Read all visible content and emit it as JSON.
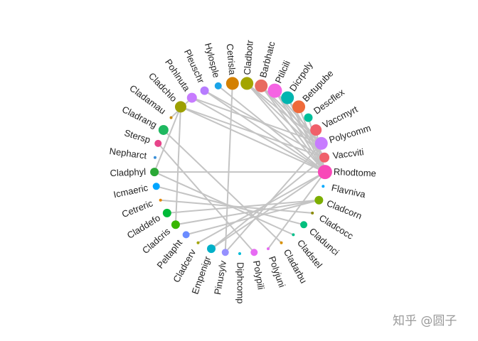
{
  "nodes": [
    {
      "label": "Cladbotr",
      "color": "#a3a500",
      "size": 9
    },
    {
      "label": "Barbhatc",
      "color": "#e86a5f",
      "size": 9
    },
    {
      "label": "Ptilcili",
      "color": "#f564e3",
      "size": 10
    },
    {
      "label": "Dicrpoly",
      "color": "#00b5b0",
      "size": 9
    },
    {
      "label": "Betupube",
      "color": "#ef6a3a",
      "size": 9
    },
    {
      "label": "Descflex",
      "color": "#00bf9a",
      "size": 6
    },
    {
      "label": "Vaccmyrt",
      "color": "#f0606a",
      "size": 8
    },
    {
      "label": "Polycomm",
      "color": "#c77cff",
      "size": 9
    },
    {
      "label": "Vaccviti",
      "color": "#f0606a",
      "size": 7
    },
    {
      "label": "Rhodtome",
      "color": "#f848b8",
      "size": 10
    },
    {
      "label": "Flavniva",
      "color": "#00a9ff",
      "size": 2
    },
    {
      "label": "Cladcorn",
      "color": "#7cae00",
      "size": 6
    },
    {
      "label": "Cladcocc",
      "color": "#8a8a00",
      "size": 2
    },
    {
      "label": "Cladunci",
      "color": "#00bf7d",
      "size": 5
    },
    {
      "label": "Cladstel",
      "color": "#00c08b",
      "size": 2
    },
    {
      "label": "Cladarbu",
      "color": "#d89000",
      "size": 2
    },
    {
      "label": "Polyjuni",
      "color": "#e76bf3",
      "size": 2
    },
    {
      "label": "Polypili",
      "color": "#e76bf3",
      "size": 5
    },
    {
      "label": "Diphcomp",
      "color": "#00bcd8",
      "size": 2
    },
    {
      "label": "Pinusylv",
      "color": "#9590ff",
      "size": 5
    },
    {
      "label": "Empenigr",
      "color": "#00b0c8",
      "size": 6
    },
    {
      "label": "Cladcerv",
      "color": "#a3a500",
      "size": 2
    },
    {
      "label": "Peltapht",
      "color": "#6b8cff",
      "size": 5
    },
    {
      "label": "Cladcris",
      "color": "#39b600",
      "size": 6
    },
    {
      "label": "Claddefo",
      "color": "#00ba38",
      "size": 6
    },
    {
      "label": "Cetreric",
      "color": "#e58700",
      "size": 2
    },
    {
      "label": "Icmaeric",
      "color": "#00a5ff",
      "size": 5
    },
    {
      "label": "Cladphyl",
      "color": "#2aa836",
      "size": 6
    },
    {
      "label": "Nepharct",
      "color": "#3a8fd8",
      "size": 2
    },
    {
      "label": "Stersp",
      "color": "#e7448a",
      "size": 5
    },
    {
      "label": "Cladrang",
      "color": "#1fb860",
      "size": 7
    },
    {
      "label": "Cladamau",
      "color": "#c88a00",
      "size": 2
    },
    {
      "label": "Cladchlo",
      "color": "#9da000",
      "size": 8
    },
    {
      "label": "Pohlnuta",
      "color": "#c77cff",
      "size": 7
    },
    {
      "label": "Pleuschr",
      "color": "#b77cff",
      "size": 6
    },
    {
      "label": "Hylosple",
      "color": "#1aa4e8",
      "size": 5
    },
    {
      "label": "Cetrisla",
      "color": "#d48000",
      "size": 9
    }
  ],
  "edges": [
    [
      36,
      19
    ],
    [
      32,
      23
    ],
    [
      32,
      27
    ],
    [
      32,
      9
    ],
    [
      32,
      8
    ],
    [
      33,
      9
    ],
    [
      33,
      7
    ],
    [
      34,
      9
    ],
    [
      34,
      8
    ],
    [
      35,
      9
    ],
    [
      0,
      9
    ],
    [
      0,
      8
    ],
    [
      1,
      9
    ],
    [
      1,
      8
    ],
    [
      2,
      9
    ],
    [
      2,
      7
    ],
    [
      3,
      9
    ],
    [
      3,
      8
    ],
    [
      4,
      9
    ],
    [
      5,
      9
    ],
    [
      6,
      9
    ],
    [
      1,
      7
    ],
    [
      0,
      7
    ],
    [
      2,
      8
    ],
    [
      9,
      20
    ],
    [
      8,
      20
    ],
    [
      9,
      21
    ],
    [
      7,
      19
    ],
    [
      9,
      16
    ],
    [
      27,
      14
    ],
    [
      24,
      11
    ],
    [
      25,
      12
    ],
    [
      26,
      13
    ],
    [
      29,
      17
    ],
    [
      30,
      15
    ],
    [
      23,
      11
    ],
    [
      22,
      11
    ],
    [
      27,
      9
    ],
    [
      33,
      31
    ]
  ],
  "watermark": "知乎 @圆子"
}
